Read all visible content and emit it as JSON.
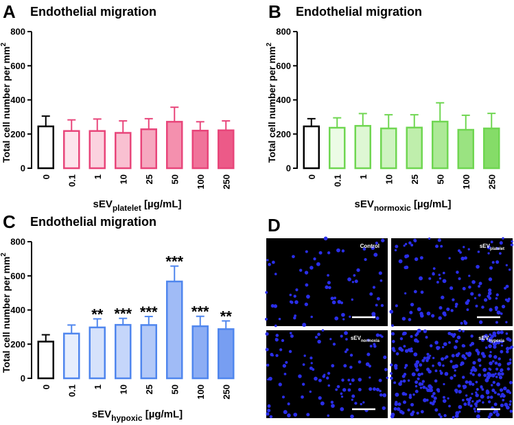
{
  "chart_data": [
    {
      "type": "bar",
      "panel": "A",
      "title": "Endothelial migration",
      "ylabel": "Total cell number per mm",
      "ylabel_sup": "2",
      "xlabel": "sEV",
      "xlabel_sub": "platelet",
      "xlabel_rest": " [µg/mL]",
      "categories": [
        "0",
        "0.1",
        "1",
        "10",
        "25",
        "50",
        "100",
        "250"
      ],
      "values": [
        245,
        218,
        218,
        207,
        228,
        272,
        220,
        222
      ],
      "errors": [
        60,
        65,
        70,
        70,
        62,
        85,
        52,
        55
      ],
      "colors": [
        "#ffffff",
        "#fde4ec",
        "#fbd2df",
        "#f9c0d1",
        "#f6a8bf",
        "#f490ae",
        "#f0739a",
        "#ec5a88"
      ],
      "edge_colors": [
        "#000000",
        "#e8457a",
        "#e8457a",
        "#e8457a",
        "#e8457a",
        "#e8457a",
        "#e8457a",
        "#e8457a"
      ],
      "ylim": [
        0,
        800
      ],
      "yticks": [
        0,
        200,
        400,
        600,
        800
      ]
    },
    {
      "type": "bar",
      "panel": "B",
      "title": "Endothelial migration",
      "ylabel": "Total cell number per mm",
      "ylabel_sup": "2",
      "xlabel": "sEV",
      "xlabel_sub": "normoxic",
      "xlabel_rest": " [µg/mL]",
      "categories": [
        "0",
        "0.1",
        "1",
        "10",
        "25",
        "50",
        "100",
        "250"
      ],
      "values": [
        245,
        237,
        248,
        233,
        238,
        273,
        225,
        233
      ],
      "errors": [
        45,
        58,
        72,
        80,
        75,
        110,
        85,
        88
      ],
      "colors": [
        "#ffffff",
        "#ecfbe6",
        "#def7d4",
        "#cff3c1",
        "#bfeeac",
        "#ade997",
        "#9ae381",
        "#85dc68"
      ],
      "edge_colors": [
        "#000000",
        "#6fd651",
        "#6fd651",
        "#6fd651",
        "#6fd651",
        "#6fd651",
        "#6fd651",
        "#6fd651"
      ],
      "ylim": [
        0,
        800
      ],
      "yticks": [
        0,
        200,
        400,
        600,
        800
      ]
    },
    {
      "type": "bar",
      "panel": "C",
      "title": "Endothelial migration",
      "ylabel": "Total cell number per mm",
      "ylabel_sup": "2",
      "xlabel": "sEV",
      "xlabel_sub": "hypoxic",
      "xlabel_rest": " [µg/mL]",
      "categories": [
        "0",
        "0.1",
        "1",
        "10",
        "25",
        "50",
        "100",
        "250"
      ],
      "values": [
        215,
        262,
        298,
        313,
        312,
        567,
        305,
        288
      ],
      "errors": [
        40,
        50,
        50,
        38,
        50,
        90,
        58,
        48
      ],
      "annotations": [
        null,
        null,
        "**",
        "***",
        "***",
        "***",
        "***",
        "**"
      ],
      "colors": [
        "#ffffff",
        "#e6eefd",
        "#d6e2fb",
        "#c5d6fa",
        "#b3c9f8",
        "#a0bbf6",
        "#8cadf4",
        "#779ef2"
      ],
      "edge_colors": [
        "#000000",
        "#4f86ee",
        "#4f86ee",
        "#4f86ee",
        "#4f86ee",
        "#4f86ee",
        "#4f86ee",
        "#4f86ee"
      ],
      "ylim": [
        0,
        800
      ],
      "yticks": [
        0,
        200,
        400,
        600,
        800
      ]
    }
  ],
  "images": {
    "panel": "D",
    "items": [
      {
        "label": "Control",
        "sub": null
      },
      {
        "label": "sEV",
        "sub": "platelet"
      },
      {
        "label": "sEV",
        "sub": "normoxia"
      },
      {
        "label": "sEV",
        "sub": "hypoxia"
      }
    ]
  }
}
